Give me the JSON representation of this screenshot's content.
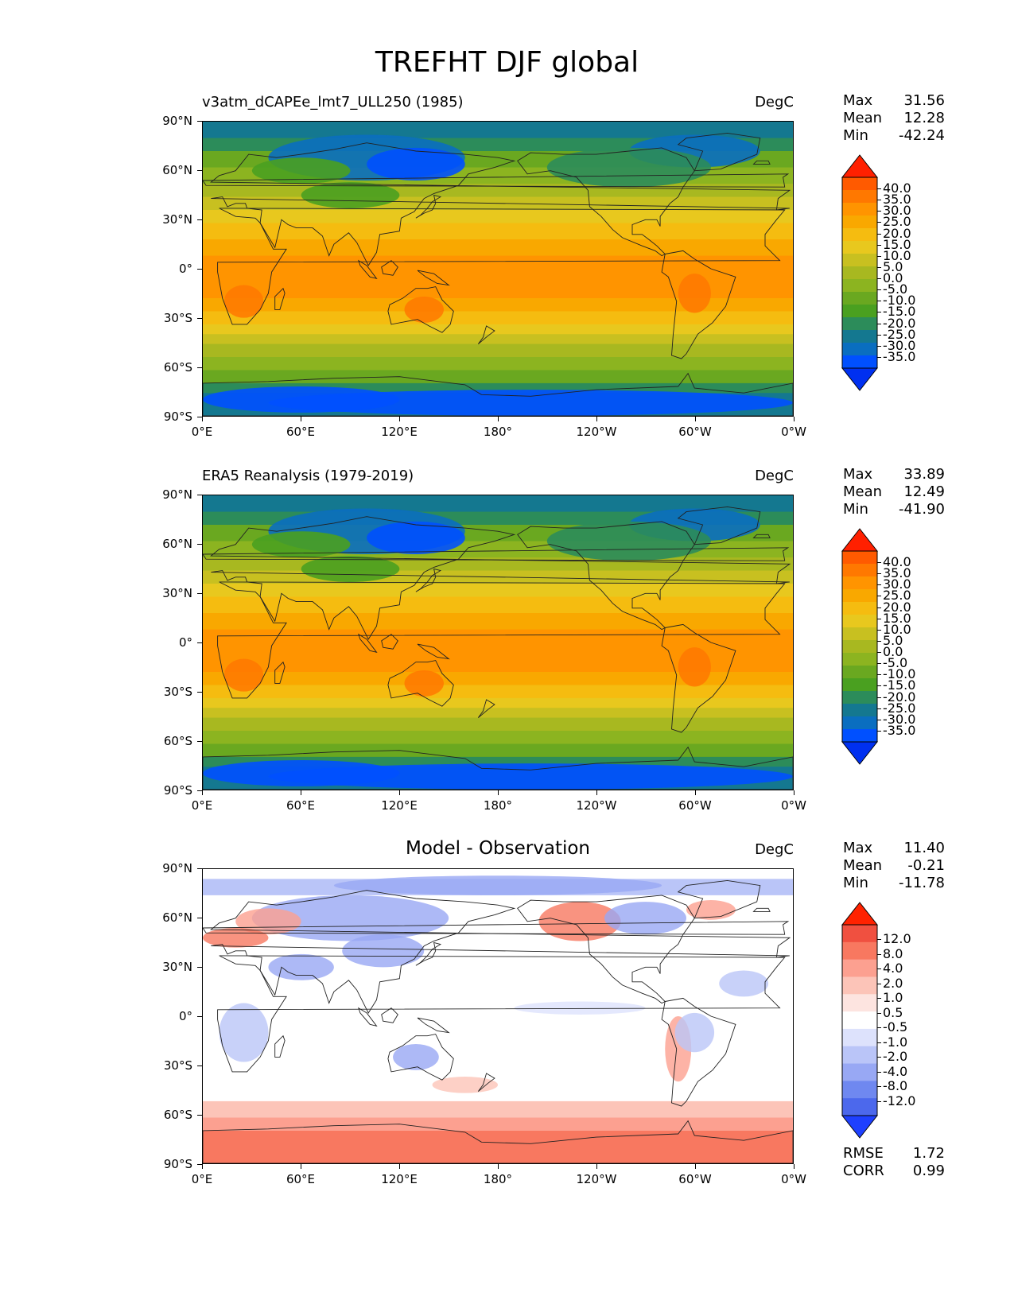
{
  "figure": {
    "title": "TREFHT DJF global",
    "lat_labels": [
      "90°N",
      "60°N",
      "30°N",
      "0°",
      "30°S",
      "60°S",
      "90°S"
    ],
    "lon_labels": [
      "0°E",
      "60°E",
      "120°E",
      "180°",
      "120°W",
      "60°W",
      "0°W"
    ]
  },
  "panels": [
    {
      "title": "v3atm_dCAPEe_lmt7_ULL250 (1985)",
      "units": "DegC",
      "stats": {
        "max_label": "Max",
        "max": "31.56",
        "mean_label": "Mean",
        "mean": "12.28",
        "min_label": "Min",
        "min": "-42.24"
      },
      "colorbar_labels": [
        "40.0",
        "35.0",
        "30.0",
        "25.0",
        "20.0",
        "15.0",
        "10.0",
        "5.0",
        "0.0",
        "-5.0",
        "-10.0",
        "-15.0",
        "-20.0",
        "-25.0",
        "-30.0",
        "-35.0"
      ]
    },
    {
      "title": "ERA5 Reanalysis (1979-2019)",
      "units": "DegC",
      "stats": {
        "max_label": "Max",
        "max": "33.89",
        "mean_label": "Mean",
        "mean": "12.49",
        "min_label": "Min",
        "min": "-41.90"
      },
      "colorbar_labels": [
        "40.0",
        "35.0",
        "30.0",
        "25.0",
        "20.0",
        "15.0",
        "10.0",
        "5.0",
        "0.0",
        "-5.0",
        "-10.0",
        "-15.0",
        "-20.0",
        "-25.0",
        "-30.0",
        "-35.0"
      ]
    },
    {
      "title": "Model - Observation",
      "units": "DegC",
      "stats": {
        "max_label": "Max",
        "max": "11.40",
        "mean_label": "Mean",
        "mean": "-0.21",
        "min_label": "Min",
        "min": "-11.78"
      },
      "colorbar_labels": [
        "12.0",
        "8.0",
        "4.0",
        "2.0",
        "1.0",
        "0.5",
        "-0.5",
        "-1.0",
        "-2.0",
        "-4.0",
        "-8.0",
        "-12.0"
      ],
      "metrics": {
        "rmse_label": "RMSE",
        "rmse": "1.72",
        "corr_label": "CORR",
        "corr": "0.99"
      }
    }
  ],
  "colors": {
    "temp_scale": [
      "#ff2000",
      "#ff5a00",
      "#ff7800",
      "#ff9400",
      "#f9a800",
      "#f5bc10",
      "#e8c81e",
      "#c8c020",
      "#a8b820",
      "#8cb420",
      "#6aa820",
      "#4aa020",
      "#2c8c5a",
      "#147890",
      "#0a6ec0",
      "#0050ff",
      "#0030f0"
    ],
    "diff_scale": [
      "#ff2200",
      "#f05040",
      "#f87860",
      "#fca090",
      "#fcc4b8",
      "#fde4e0",
      "#ffffff",
      "#dde2fc",
      "#bac5f8",
      "#98a8f4",
      "#6f88f0",
      "#4c68ec",
      "#1e40ff"
    ],
    "coast": "#222222"
  }
}
